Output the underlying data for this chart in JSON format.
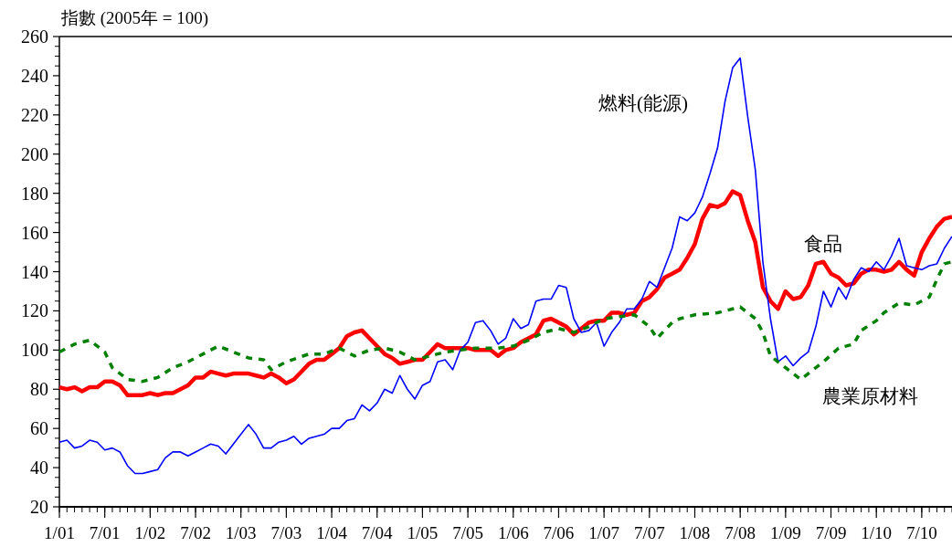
{
  "chart_data": {
    "type": "line",
    "ylabel": "指數 (2005年 = 100)",
    "x": [
      "2001-01",
      "2001-02",
      "2001-03",
      "2001-04",
      "2001-05",
      "2001-06",
      "2001-07",
      "2001-08",
      "2001-09",
      "2001-10",
      "2001-11",
      "2001-12",
      "2002-01",
      "2002-02",
      "2002-03",
      "2002-04",
      "2002-05",
      "2002-06",
      "2002-07",
      "2002-08",
      "2002-09",
      "2002-10",
      "2002-11",
      "2002-12",
      "2003-01",
      "2003-02",
      "2003-03",
      "2003-04",
      "2003-05",
      "2003-06",
      "2003-07",
      "2003-08",
      "2003-09",
      "2003-10",
      "2003-11",
      "2003-12",
      "2004-01",
      "2004-02",
      "2004-03",
      "2004-04",
      "2004-05",
      "2004-06",
      "2004-07",
      "2004-08",
      "2004-09",
      "2004-10",
      "2004-11",
      "2004-12",
      "2005-01",
      "2005-02",
      "2005-03",
      "2005-04",
      "2005-05",
      "2005-06",
      "2005-07",
      "2005-08",
      "2005-09",
      "2005-10",
      "2005-11",
      "2005-12",
      "2006-01",
      "2006-02",
      "2006-03",
      "2006-04",
      "2006-05",
      "2006-06",
      "2006-07",
      "2006-08",
      "2006-09",
      "2006-10",
      "2006-11",
      "2006-12",
      "2007-01",
      "2007-02",
      "2007-03",
      "2007-04",
      "2007-05",
      "2007-06",
      "2007-07",
      "2007-08",
      "2007-09",
      "2007-10",
      "2007-11",
      "2007-12",
      "2008-01",
      "2008-02",
      "2008-03",
      "2008-04",
      "2008-05",
      "2008-06",
      "2008-07",
      "2008-08",
      "2008-09",
      "2008-10",
      "2008-11",
      "2008-12",
      "2009-01",
      "2009-02",
      "2009-03",
      "2009-04",
      "2009-05",
      "2009-06",
      "2009-07",
      "2009-08",
      "2009-09",
      "2009-10",
      "2009-11",
      "2009-12",
      "2010-01",
      "2010-02",
      "2010-03",
      "2010-04",
      "2010-05",
      "2010-06",
      "2010-07",
      "2010-08",
      "2010-09",
      "2010-10",
      "2010-11"
    ],
    "series": [
      {
        "name": "食品",
        "color": "#ff0000",
        "values": [
          81,
          80,
          81,
          79,
          81,
          81,
          84,
          84,
          82,
          77,
          77,
          77,
          78,
          77,
          78,
          78,
          80,
          82,
          86,
          86,
          89,
          88,
          87,
          88,
          88,
          88,
          87,
          86,
          88,
          86,
          83,
          85,
          89,
          93,
          95,
          95,
          98,
          101,
          107,
          109,
          110,
          106,
          102,
          98,
          96,
          93,
          94,
          95,
          95,
          99,
          103,
          101,
          101,
          101,
          101,
          100,
          100,
          100,
          97,
          100,
          101,
          104,
          106,
          108,
          115,
          116,
          114,
          112,
          108,
          111,
          114,
          115,
          115,
          119,
          119,
          118,
          119,
          125,
          127,
          131,
          137,
          139,
          141,
          147,
          154,
          167,
          174,
          173,
          175,
          181,
          179,
          166,
          155,
          132,
          125,
          121,
          130,
          126,
          127,
          133,
          144,
          145,
          139,
          137,
          133,
          134,
          139,
          141,
          141,
          140,
          141,
          145,
          141,
          138,
          150,
          157,
          163,
          167,
          168
        ]
      },
      {
        "name": "燃料(能源)",
        "color": "#0000ff",
        "values": [
          53,
          54,
          50,
          51,
          54,
          53,
          49,
          50,
          48,
          41,
          37,
          37,
          38,
          39,
          45,
          48,
          48,
          46,
          48,
          50,
          52,
          51,
          47,
          52,
          57,
          62,
          57,
          50,
          50,
          53,
          54,
          56,
          52,
          55,
          56,
          57,
          60,
          60,
          64,
          65,
          72,
          69,
          73,
          80,
          78,
          87,
          80,
          75,
          82,
          84,
          94,
          95,
          90,
          100,
          104,
          114,
          115,
          110,
          103,
          106,
          116,
          111,
          113,
          125,
          126,
          126,
          133,
          132,
          116,
          109,
          110,
          114,
          102,
          109,
          114,
          121,
          121,
          126,
          135,
          132,
          142,
          152,
          168,
          166,
          170,
          178,
          190,
          203,
          227,
          244,
          249,
          219,
          192,
          145,
          116,
          94,
          97,
          92,
          96,
          99,
          112,
          130,
          122,
          132,
          126,
          136,
          142,
          140,
          145,
          141,
          148,
          157,
          143,
          142,
          141,
          143,
          144,
          152,
          158
        ]
      },
      {
        "name": "農業原材料",
        "color": "#008000",
        "line_style": "dashed",
        "x": [
          "2001-01",
          "2001-03",
          "2001-05",
          "2001-07",
          "2001-08",
          "2001-10",
          "2001-12",
          "2002-02",
          "2002-04",
          "2002-06",
          "2002-08",
          "2002-10",
          "2002-12",
          "2003-02",
          "2003-04",
          "2003-05",
          "2003-07",
          "2003-10",
          "2003-12",
          "2004-02",
          "2004-04",
          "2004-06",
          "2004-08",
          "2004-10",
          "2004-12",
          "2005-02",
          "2005-04",
          "2005-06",
          "2005-08",
          "2005-11",
          "2006-01",
          "2006-03",
          "2006-05",
          "2006-07",
          "2006-09",
          "2006-11",
          "2007-01",
          "2007-03",
          "2007-05",
          "2007-07",
          "2007-08",
          "2007-10",
          "2007-11",
          "2008-01",
          "2008-04",
          "2008-06",
          "2008-07",
          "2008-09",
          "2008-10",
          "2008-11",
          "2009-01",
          "2009-03",
          "2009-04",
          "2009-06",
          "2009-08",
          "2009-10",
          "2009-11",
          "2010-01",
          "2010-02",
          "2010-04",
          "2010-06",
          "2010-08",
          "2010-09",
          "2010-10",
          "2010-11"
        ],
        "values": [
          99,
          103,
          105,
          99,
          91,
          85,
          84,
          86,
          91,
          94,
          98,
          102,
          99,
          96,
          95,
          90,
          94,
          98,
          98,
          101,
          97,
          100,
          101,
          99,
          95,
          97,
          99,
          100,
          101,
          101,
          102,
          105,
          109,
          111,
          109,
          112,
          116,
          117,
          118,
          112,
          106,
          114,
          116,
          118,
          119,
          121,
          122,
          116,
          109,
          97,
          91,
          85,
          88,
          94,
          101,
          103,
          110,
          115,
          119,
          124,
          123,
          127,
          136,
          144,
          145
        ]
      }
    ],
    "xlim": [
      "2001-01",
      "2010-11"
    ],
    "xticks": [
      {
        "value": "2001-01",
        "label": "1/01"
      },
      {
        "value": "2001-07",
        "label": "7/01"
      },
      {
        "value": "2002-01",
        "label": "1/02"
      },
      {
        "value": "2002-07",
        "label": "7/02"
      },
      {
        "value": "2003-01",
        "label": "1/03"
      },
      {
        "value": "2003-07",
        "label": "7/03"
      },
      {
        "value": "2004-01",
        "label": "1/04"
      },
      {
        "value": "2004-07",
        "label": "7/04"
      },
      {
        "value": "2005-01",
        "label": "1/05"
      },
      {
        "value": "2005-07",
        "label": "7/05"
      },
      {
        "value": "2006-01",
        "label": "1/06"
      },
      {
        "value": "2006-07",
        "label": "7/06"
      },
      {
        "value": "2007-01",
        "label": "1/07"
      },
      {
        "value": "2007-07",
        "label": "7/07"
      },
      {
        "value": "2008-01",
        "label": "1/08"
      },
      {
        "value": "2008-07",
        "label": "7/08"
      },
      {
        "value": "2009-01",
        "label": "1/09"
      },
      {
        "value": "2009-07",
        "label": "7/09"
      },
      {
        "value": "2010-01",
        "label": "1/10"
      },
      {
        "value": "2010-07",
        "label": "7/10"
      }
    ],
    "ylim": [
      20,
      260
    ],
    "yticks": [
      20,
      40,
      60,
      80,
      100,
      120,
      140,
      160,
      180,
      200,
      220,
      240,
      260
    ]
  }
}
